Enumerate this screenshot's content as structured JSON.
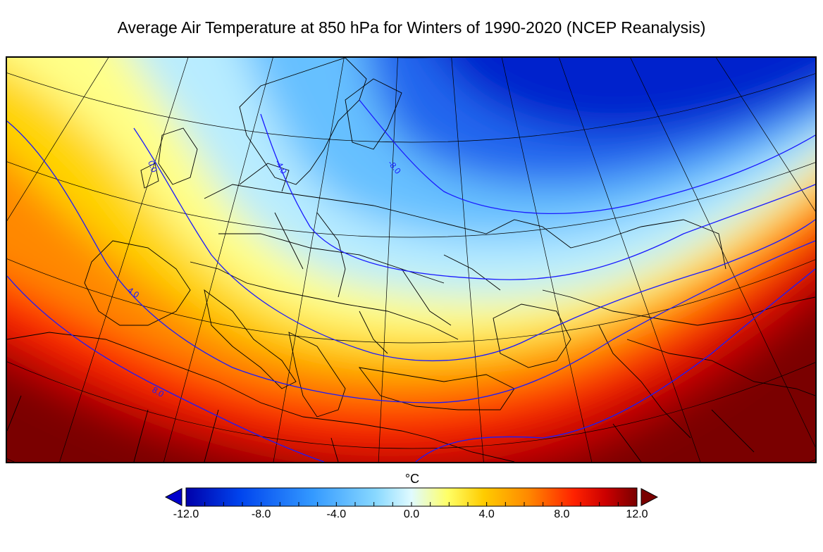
{
  "title": "Average Air Temperature at 850 hPa for Winters of 1990-2020 (NCEP Reanalysis)",
  "colorbar": {
    "unit": "°C",
    "min": -12.0,
    "max": 12.0,
    "tick_labels": [
      "-12.0",
      "-8.0",
      "-4.0",
      "0.0",
      "4.0",
      "8.0",
      "12.0"
    ],
    "extend": "both",
    "colors": [
      "#0000aa",
      "#0044ee",
      "#3399ff",
      "#88d8ff",
      "#e0fbff",
      "#ffff66",
      "#ffcc00",
      "#ff8800",
      "#ff2200",
      "#cc0000",
      "#7a0000"
    ]
  },
  "contours": {
    "color": "#1a1aff",
    "labels": [
      "0.0",
      "-4.0",
      "-8.0",
      "4.0",
      "8.0"
    ]
  },
  "map": {
    "projection": "conic",
    "basemap": "country borders and coastlines",
    "graticule": true
  }
}
